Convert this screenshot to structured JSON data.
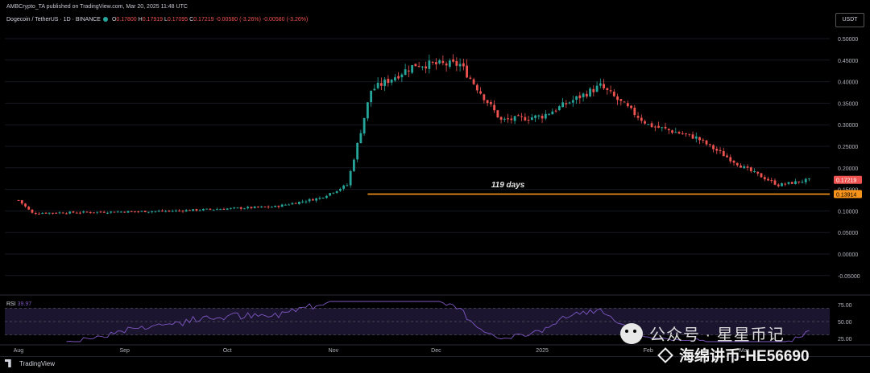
{
  "header": {
    "publisher": "AMBCrypto_TA published on TradingView.com, Mar 20, 2025 11:48 UTC",
    "symbol": "Dogecoin / TetherUS · 1D · BINANCE",
    "ohlc": {
      "o_label": "O",
      "o": "0.17800",
      "h_label": "H",
      "h": "0.17919",
      "l_label": "L",
      "l": "0.17095",
      "c_label": "C",
      "c": "0.17219",
      "change": "-0.00580 (-3.26%)",
      "change2": "-0.00580 (-3.26%)"
    },
    "currency": "USDT"
  },
  "chart_data": [
    {
      "type": "candlestick",
      "title": "Dogecoin / TetherUS · 1D · BINANCE",
      "ylim": [
        -0.08,
        0.52
      ],
      "y_ticks": [
        "0.50000",
        "0.45000",
        "0.40000",
        "0.35000",
        "0.30000",
        "0.25000",
        "0.20000",
        "0.15000",
        "0.10000",
        "0.05000",
        "0.00000",
        "-0.05000"
      ],
      "y_tick_values": [
        0.5,
        0.45,
        0.4,
        0.35,
        0.3,
        0.25,
        0.2,
        0.15,
        0.1,
        0.05,
        0.0,
        -0.05
      ],
      "x_ticks": [
        "Aug",
        "Sep",
        "Oct",
        "Nov",
        "Dec",
        "2025",
        "Feb",
        "Mar"
      ],
      "key_points": [
        {
          "date": "2024-08-01",
          "close": 0.125
        },
        {
          "date": "2024-08-05",
          "close": 0.095
        },
        {
          "date": "2024-09-15",
          "close": 0.1
        },
        {
          "date": "2024-10-15",
          "close": 0.11
        },
        {
          "date": "2024-10-28",
          "close": 0.13
        },
        {
          "date": "2024-11-05",
          "close": 0.16
        },
        {
          "date": "2024-11-12",
          "close": 0.38
        },
        {
          "date": "2024-11-25",
          "close": 0.44
        },
        {
          "date": "2024-12-08",
          "close": 0.44
        },
        {
          "date": "2024-12-20",
          "close": 0.31
        },
        {
          "date": "2025-01-01",
          "close": 0.32
        },
        {
          "date": "2025-01-18",
          "close": 0.39
        },
        {
          "date": "2025-02-01",
          "close": 0.3
        },
        {
          "date": "2025-02-15",
          "close": 0.27
        },
        {
          "date": "2025-03-01",
          "close": 0.2
        },
        {
          "date": "2025-03-11",
          "close": 0.16
        },
        {
          "date": "2025-03-20",
          "close": 0.172
        }
      ],
      "support_line": {
        "value": 0.13914,
        "label": "0.13914",
        "color": "#f7931a"
      },
      "last_price": {
        "value": 0.17219,
        "label": "0.17219",
        "color": "#ef5350"
      },
      "annotation": "119 days",
      "up_color": "#26a69a",
      "down_color": "#ef5350"
    },
    {
      "type": "line",
      "title": "RSI",
      "rsi_label": "RSI",
      "rsi_value": "39.97",
      "ylim": [
        20,
        80
      ],
      "y_ticks": [
        "75.00",
        "50.00",
        "25.00"
      ],
      "y_tick_values": [
        75,
        50,
        25
      ],
      "band": [
        30,
        70
      ],
      "line_color": "#7e57c2"
    }
  ],
  "footer": {
    "brand": "TradingView"
  },
  "watermark": {
    "line1": "公众号 · 星星币记",
    "line2": "海绵讲币-HE56690"
  }
}
